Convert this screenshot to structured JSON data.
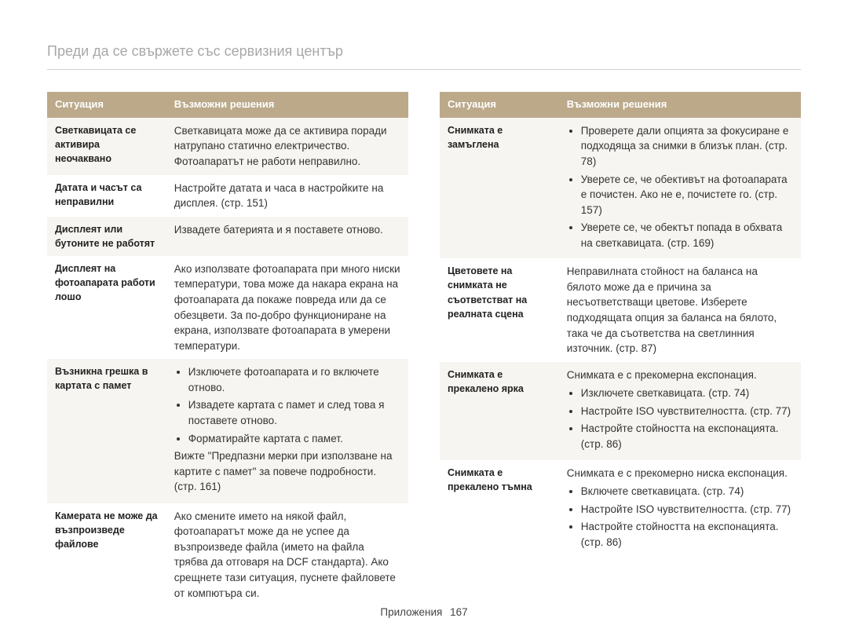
{
  "page_title": "Преди да се свържете със сервизния център",
  "footer_label": "Приложения",
  "footer_page": "167",
  "colors": {
    "header_bg": "#bba98a",
    "header_text": "#ffffff",
    "row_odd_bg": "#f7f5f1",
    "row_even_bg": "#ffffff",
    "title_color": "#a8a8a8",
    "divider": "#d0d0d0"
  },
  "headers": {
    "situation": "Ситуация",
    "solutions": "Възможни решения"
  },
  "left_table": [
    {
      "situation": "Светкавицата се активира неочаквано",
      "solution_text": "Светкавицата може да се активира поради натрупано статично електричество. Фотоапаратът не работи неправилно."
    },
    {
      "situation": "Датата и часът са неправилни",
      "solution_text": "Настройте датата и часа в настройките на дисплея. (стр. 151)"
    },
    {
      "situation": "Дисплеят или бутоните не работят",
      "solution_text": "Извадете батерията и я поставете отново."
    },
    {
      "situation": "Дисплеят на фотоапарата работи лошо",
      "solution_text": "Ако използвате фотоапарата при много ниски температури, това може да накара екрана на фотоапарата да покаже повреда или да се обезцвети. За по-добро функциониране на екрана, използвате фотоапарата в умерени температури."
    },
    {
      "situation": "Възникна грешка в картата с памет",
      "solution_bullets": [
        "Изключете фотоапарата и го включете отново.",
        "Извадете картата с памет и след това я поставете отново.",
        "Форматирайте картата с памет."
      ],
      "solution_after": "Вижте \"Предпазни мерки при използване на картите с памет\" за повече подробности. (стр. 161)"
    },
    {
      "situation": "Камерата не може да възпроизведе файлове",
      "solution_text": "Ако смените името на някой файл, фотоапаратът може да не успее да възпроизведе файла (името на файла трябва да отговаря на DCF стандарта). Ако срещнете тази ситуация, пуснете файловете от компютъра си."
    }
  ],
  "right_table": [
    {
      "situation": "Снимката е замъглена",
      "solution_bullets": [
        "Проверете дали опцията за фокусиране е подходяща за снимки в близък план. (стр. 78)",
        "Уверете се, че обективът на фотоапарата е почистен. Ако не е, почистете го. (стр. 157)",
        "Уверете се, че обектът попада в обхвата на светкавицата. (стр. 169)"
      ]
    },
    {
      "situation": "Цветовете на снимката не съответстват на реалната сцена",
      "solution_text": "Неправилната стойност на баланса на бялото може да е причина за несъответстващи цветове. Изберете подходящата опция за баланса на бялото, така че да съответства на светлинния източник. (стр. 87)"
    },
    {
      "situation": "Снимката е прекалено ярка",
      "solution_before": "Снимката е с прекомерна експонация.",
      "solution_bullets": [
        "Изключете светкавицата. (стр. 74)",
        "Настройте ISO чувствителността. (стр. 77)",
        "Настройте стойността на експонацията. (стр. 86)"
      ]
    },
    {
      "situation": "Снимката е прекалено тъмна",
      "solution_before": "Снимката е с прекомерно ниска експонация.",
      "solution_bullets": [
        "Включете светкавицата. (стр. 74)",
        "Настройте ISO чувствителността. (стр. 77)",
        "Настройте стойността на експонацията. (стр. 86)"
      ]
    }
  ]
}
